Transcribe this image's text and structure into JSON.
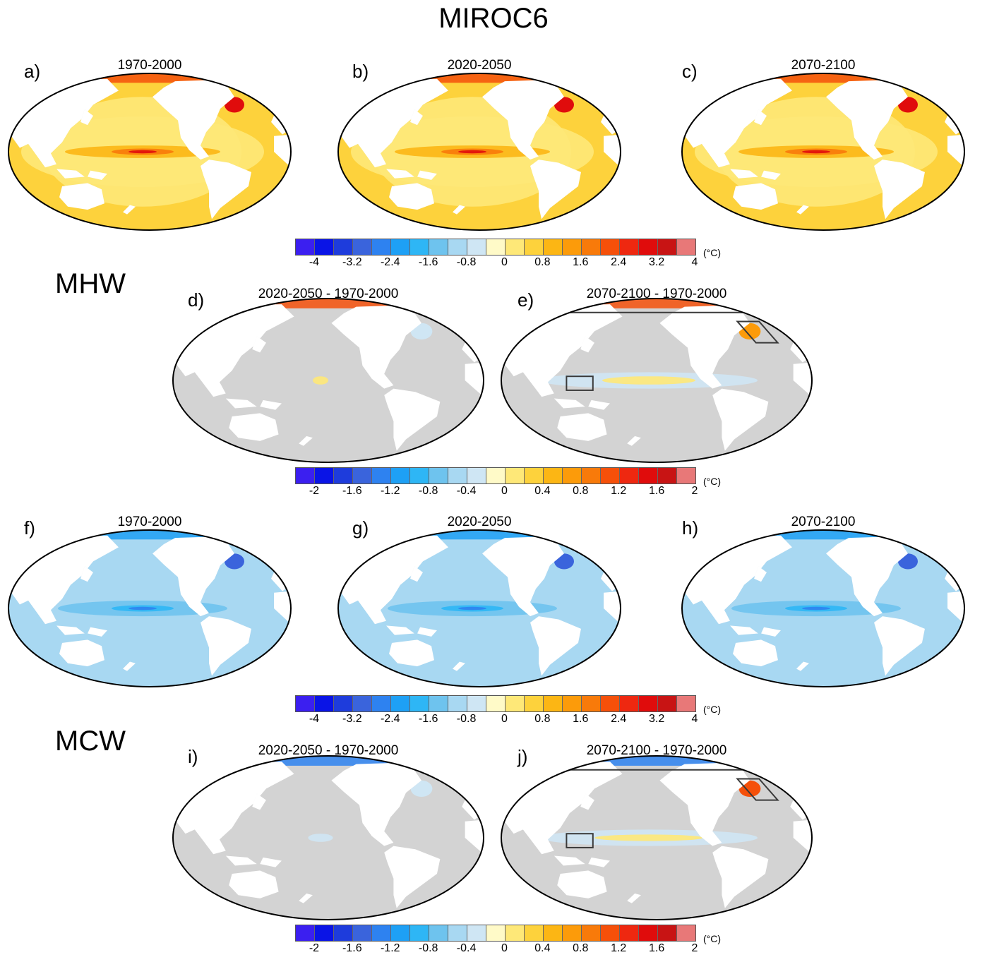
{
  "title": "MIROC6",
  "section_labels": {
    "mhw": "MHW",
    "mcw": "MCW"
  },
  "panels": [
    {
      "letter": "a)",
      "title": "1970-2000",
      "field": "mhw"
    },
    {
      "letter": "b)",
      "title": "2020-2050",
      "field": "mhw"
    },
    {
      "letter": "c)",
      "title": "2070-2100",
      "field": "mhw"
    },
    {
      "letter": "d)",
      "title": "2020-2050 - 1970-2000",
      "field": "diff_small"
    },
    {
      "letter": "e)",
      "title": "2070-2100 - 1970-2000",
      "field": "diff_large",
      "boxes": true
    },
    {
      "letter": "f)",
      "title": "1970-2000",
      "field": "mcw"
    },
    {
      "letter": "g)",
      "title": "2020-2050",
      "field": "mcw"
    },
    {
      "letter": "h)",
      "title": "2070-2100",
      "field": "mcw"
    },
    {
      "letter": "i)",
      "title": "2020-2050 - 1970-2000",
      "field": "diff_small_c"
    },
    {
      "letter": "j)",
      "title": "2070-2100 - 1970-2000",
      "field": "diff_large_c",
      "boxes": true
    }
  ],
  "colorbars": [
    {
      "ticks": [
        "-4",
        "-3.2",
        "-2.4",
        "-1.6",
        "-0.8",
        "0",
        "0.8",
        "1.6",
        "2.4",
        "3.2",
        "4"
      ],
      "unit": "(°C)"
    },
    {
      "ticks": [
        "-2",
        "-1.6",
        "-1.2",
        "-0.8",
        "-0.4",
        "0",
        "0.4",
        "0.8",
        "1.2",
        "1.6",
        "2"
      ],
      "unit": "(°C)"
    },
    {
      "ticks": [
        "-4",
        "-3.2",
        "-2.4",
        "-1.6",
        "-0.8",
        "0",
        "0.8",
        "1.6",
        "2.4",
        "3.2",
        "4"
      ],
      "unit": "(°C)"
    },
    {
      "ticks": [
        "-2",
        "-1.6",
        "-1.2",
        "-0.8",
        "-0.4",
        "0",
        "0.4",
        "0.8",
        "1.2",
        "1.6",
        "2"
      ],
      "unit": "(°C)"
    }
  ],
  "palette": [
    "#3b1ff0",
    "#0a14e6",
    "#1e3cdc",
    "#3a64dc",
    "#2e82f0",
    "#1ea0f5",
    "#2eb6f5",
    "#6ec3ee",
    "#a8d8f2",
    "#cfe6f4",
    "#fffac8",
    "#fee878",
    "#fdd23c",
    "#fcb614",
    "#fc9b0a",
    "#f87a0a",
    "#f5500a",
    "#ee2810",
    "#e00c0c",
    "#c81414",
    "#e87878"
  ],
  "colors": {
    "land": "#ffffff",
    "coast": "#7f7f7f",
    "gray": "#d3d3d3",
    "box": "#3a3a3a"
  }
}
